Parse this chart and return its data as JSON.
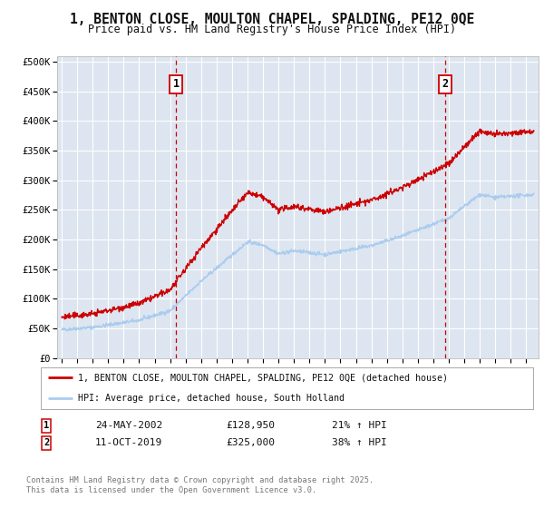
{
  "title": "1, BENTON CLOSE, MOULTON CHAPEL, SPALDING, PE12 0QE",
  "subtitle": "Price paid vs. HM Land Registry's House Price Index (HPI)",
  "ylabel_ticks": [
    "£0",
    "£50K",
    "£100K",
    "£150K",
    "£200K",
    "£250K",
    "£300K",
    "£350K",
    "£400K",
    "£450K",
    "£500K"
  ],
  "ytick_vals": [
    0,
    50000,
    100000,
    150000,
    200000,
    250000,
    300000,
    350000,
    400000,
    450000,
    500000
  ],
  "ylim": [
    0,
    510000
  ],
  "xlim_start": 1994.7,
  "xlim_end": 2025.8,
  "xticks": [
    1995,
    1996,
    1997,
    1998,
    1999,
    2000,
    2001,
    2002,
    2003,
    2004,
    2005,
    2006,
    2007,
    2008,
    2009,
    2010,
    2011,
    2012,
    2013,
    2014,
    2015,
    2016,
    2017,
    2018,
    2019,
    2020,
    2021,
    2022,
    2023,
    2024,
    2025
  ],
  "sale1_x": 2002.39,
  "sale1_y": 128950,
  "sale1_label": "1",
  "sale1_date": "24-MAY-2002",
  "sale1_price": "£128,950",
  "sale1_hpi": "21% ↑ HPI",
  "sale2_x": 2019.78,
  "sale2_y": 325000,
  "sale2_label": "2",
  "sale2_date": "11-OCT-2019",
  "sale2_price": "£325,000",
  "sale2_hpi": "38% ↑ HPI",
  "legend_line1": "1, BENTON CLOSE, MOULTON CHAPEL, SPALDING, PE12 0QE (detached house)",
  "legend_line2": "HPI: Average price, detached house, South Holland",
  "footer": "Contains HM Land Registry data © Crown copyright and database right 2025.\nThis data is licensed under the Open Government Licence v3.0.",
  "line_color_property": "#cc0000",
  "line_color_hpi": "#aaccee",
  "background_color": "#dde5f0",
  "grid_color": "#ffffff",
  "dashed_line_color": "#cc0000"
}
